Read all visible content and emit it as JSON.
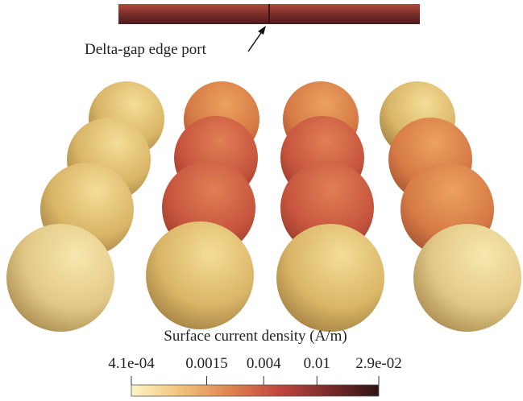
{
  "annotation": "Delta-gap edge port",
  "colorbar": {
    "title": "Surface current density (A/m)",
    "range": [
      0.00041,
      0.029
    ],
    "log_scale": true,
    "ticks": [
      {
        "value": 0.00041,
        "label": "4.1e-04"
      },
      0.0015,
      0.004,
      0.01,
      {
        "value": 0.029,
        "label": "2.9e-02"
      }
    ],
    "colors": [
      "#fdf5c6",
      "#f0c27a",
      "#e0834f",
      "#c0453d",
      "#7a2a2a",
      "#2e1414"
    ]
  }
}
